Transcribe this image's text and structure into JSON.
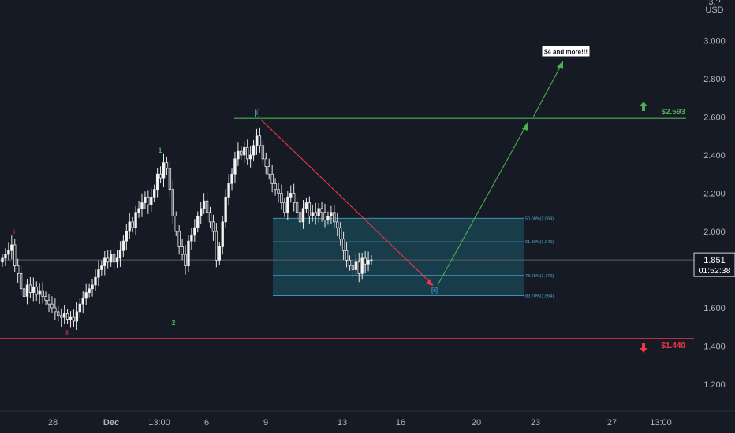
{
  "chart_data": {
    "type": "candlestick",
    "currency_label": "USD",
    "price_axis": {
      "ylim": [
        1.05,
        3.1
      ],
      "ticks": [
        3.0,
        2.8,
        2.6,
        2.4,
        2.2,
        2.0,
        1.8,
        1.6,
        1.4,
        1.2
      ],
      "tick_labels": [
        "3.000",
        "2.800",
        "2.600",
        "2.400",
        "2.200",
        "2.000",
        "1.800",
        "1.600",
        "1.400",
        "1.200"
      ],
      "top_cut_label": "3.?"
    },
    "time_axis": {
      "labels": [
        "28",
        "Dec",
        "13:00",
        "6",
        "9",
        "13",
        "16",
        "20",
        "23",
        "27",
        "13:00"
      ]
    },
    "current_price": {
      "value": 1.851,
      "label": "1.851",
      "countdown": "01:52:38"
    },
    "resistance": {
      "value": 2.593,
      "label": "$2.593",
      "color": "#4caf50"
    },
    "support": {
      "value": 1.44,
      "label": "$1.440",
      "color": "#f23645"
    },
    "wave_labels": {
      "i": "i",
      "ii": "ii",
      "w1": "1",
      "w2": "2",
      "big_i": "[i]",
      "big_ii": "[ii]"
    },
    "target_annotation": "$4 and more!!!",
    "fib_levels": [
      {
        "ratio": "50.00%",
        "value": 2.069,
        "label": "50.00%(2.069)"
      },
      {
        "ratio": "61.80%",
        "value": 1.946,
        "label": "61.80%(1.946)"
      },
      {
        "ratio": "78.60%",
        "value": 1.77,
        "label": "78.60%(1.770)"
      },
      {
        "ratio": "88.70%",
        "value": 1.664,
        "label": "88.70%(1.664)"
      }
    ],
    "series": [
      {
        "name": "",
        "close": [
          1.86,
          1.88,
          1.9,
          1.93,
          1.82,
          1.78,
          1.7,
          1.66,
          1.72,
          1.68,
          1.71,
          1.67,
          1.69,
          1.66,
          1.64,
          1.62,
          1.6,
          1.58,
          1.56,
          1.55,
          1.57,
          1.54,
          1.55,
          1.53,
          1.58,
          1.62,
          1.65,
          1.68,
          1.7,
          1.72,
          1.76,
          1.8,
          1.82,
          1.86,
          1.84,
          1.88,
          1.84,
          1.86,
          1.9,
          1.95,
          2.0,
          2.05,
          2.02,
          2.1,
          2.12,
          2.15,
          2.18,
          2.14,
          2.18,
          2.22,
          2.3,
          2.28,
          2.36,
          2.33,
          2.22,
          2.08,
          2.0,
          1.92,
          1.88,
          1.82,
          1.95,
          1.98,
          2.02,
          2.08,
          2.12,
          2.16,
          2.1,
          2.05,
          2.0,
          1.85,
          1.92,
          2.05,
          2.18,
          2.25,
          2.3,
          2.38,
          2.42,
          2.4,
          2.44,
          2.38,
          2.4,
          2.45,
          2.5,
          2.45,
          2.38,
          2.34,
          2.3,
          2.25,
          2.22,
          2.2,
          2.15,
          2.1,
          2.18,
          2.2,
          2.15,
          2.1,
          2.05,
          2.12,
          2.15,
          2.08,
          2.1,
          2.08,
          2.12,
          2.1,
          2.06,
          2.08,
          2.1,
          2.05,
          2.02,
          1.96,
          1.9,
          1.85,
          1.82,
          1.8,
          1.84,
          1.78,
          1.86,
          1.83,
          1.85,
          1.851
        ]
      }
    ]
  }
}
